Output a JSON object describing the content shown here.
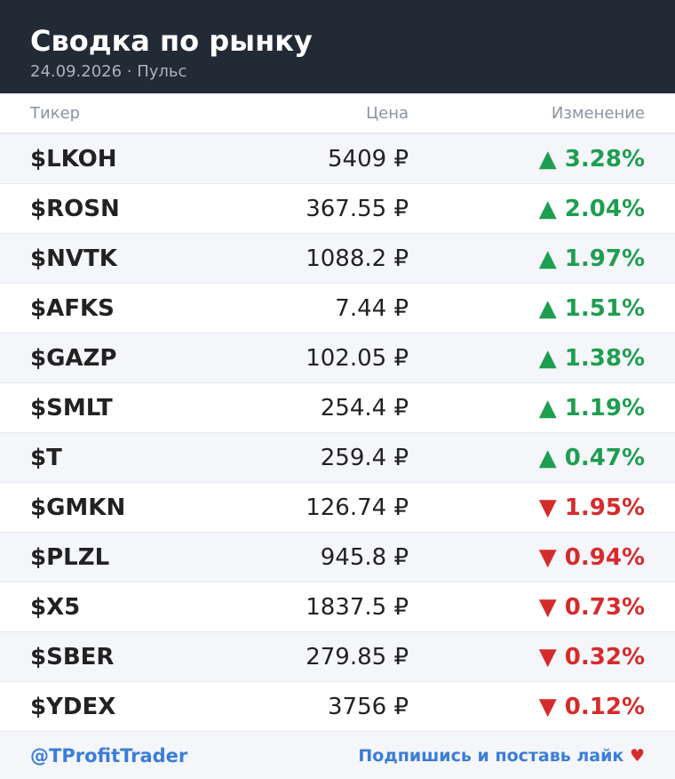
{
  "header": {
    "title": "Сводка по рынку",
    "subtitle": "24.09.2026 · Пульс"
  },
  "table": {
    "columns": [
      "Тикер",
      "Цена",
      "Изменение"
    ],
    "rows": [
      {
        "ticker": "$LKOH",
        "price": "5409 ₽",
        "change": "▲ 3.28%",
        "color": "#1e9e50"
      },
      {
        "ticker": "$ROSN",
        "price": "367.55 ₽",
        "change": "▲ 2.04%",
        "color": "#1e9e50"
      },
      {
        "ticker": "$NVTK",
        "price": "1088.2 ₽",
        "change": "▲ 1.97%",
        "color": "#1e9e50"
      },
      {
        "ticker": "$AFKS",
        "price": "7.44 ₽",
        "change": "▲ 1.51%",
        "color": "#1e9e50"
      },
      {
        "ticker": "$GAZP",
        "price": "102.05 ₽",
        "change": "▲ 1.38%",
        "color": "#1e9e50"
      },
      {
        "ticker": "$SMLT",
        "price": "254.4 ₽",
        "change": "▲ 1.19%",
        "color": "#1e9e50"
      },
      {
        "ticker": "$T",
        "price": "259.4 ₽",
        "change": "▲ 0.47%",
        "color": "#1e9e50"
      },
      {
        "ticker": "$GMKN",
        "price": "126.74 ₽",
        "change": "▼ 1.95%",
        "color": "#d62b2b"
      },
      {
        "ticker": "$PLZL",
        "price": "945.8 ₽",
        "change": "▼ 0.94%",
        "color": "#d62b2b"
      },
      {
        "ticker": "$X5",
        "price": "1837.5 ₽",
        "change": "▼ 0.73%",
        "color": "#d62b2b"
      },
      {
        "ticker": "$SBER",
        "price": "279.85 ₽",
        "change": "▼ 0.32%",
        "color": "#d62b2b"
      },
      {
        "ticker": "$YDEX",
        "price": "3756 ₽",
        "change": "▼ 0.12%",
        "color": "#d62b2b"
      }
    ]
  },
  "footer": {
    "handle": "@TProfitTrader",
    "cta": "Подпишись и поставь лайк",
    "heart": "♥"
  }
}
